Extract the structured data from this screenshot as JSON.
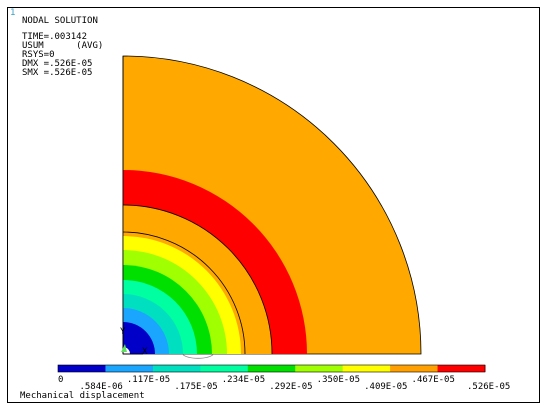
{
  "window": {
    "number": "1"
  },
  "info": {
    "title": "NODAL SOLUTION",
    "time": "TIME=.003142",
    "item": "USUM      (AVG)",
    "rsys": "RSYS=0",
    "dmx": "DMX =.526E-05",
    "smx": "SMX =.526E-05"
  },
  "triad": {
    "y_label": "Y",
    "x_label": "X"
  },
  "legend": {
    "colors": [
      "#0000c8",
      "#1aa6ff",
      "#00e0c0",
      "#00ffa0",
      "#00e000",
      "#a0ff00",
      "#ffff00",
      "#ffa000",
      "#ff0000"
    ],
    "labels_top": [
      "0",
      ".117E-05",
      ".234E-05",
      ".350E-05",
      ".467E-05"
    ],
    "labels_bottom": [
      ".584E-06",
      ".175E-05",
      ".292E-05",
      ".409E-05",
      ".526E-05"
    ],
    "caption": "Mechanical displacement"
  },
  "contour": {
    "outer_band_color": "#ffa800",
    "bands": [
      {
        "color": "#ff0000"
      },
      {
        "color": "#ffa800"
      },
      {
        "color": "#ffa800"
      },
      {
        "color": "#ffff00"
      },
      {
        "color": "#a0ff00"
      },
      {
        "color": "#00e000"
      },
      {
        "color": "#00ffa0"
      },
      {
        "color": "#00e0c0"
      },
      {
        "color": "#1aa6ff"
      },
      {
        "color": "#0000c8"
      }
    ]
  }
}
